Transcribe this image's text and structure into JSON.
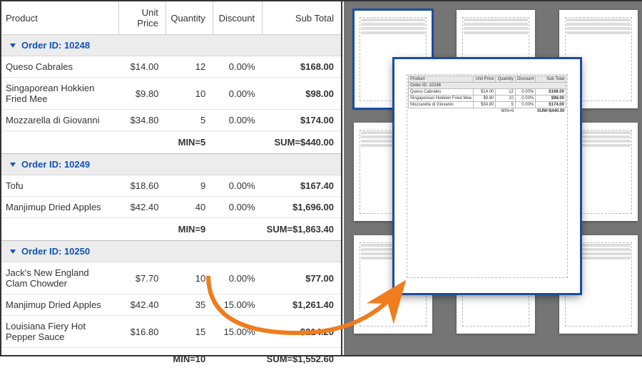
{
  "columns": {
    "product": "Product",
    "unit_price": "Unit Price",
    "quantity": "Quantity",
    "discount": "Discount",
    "subtotal": "Sub Total"
  },
  "group_label_prefix": "Order ID: ",
  "groups": [
    {
      "id": "10248",
      "rows": [
        {
          "product": "Queso Cabrales",
          "price": "$14.00",
          "qty": "12",
          "disc": "0.00%",
          "sub": "$168.00"
        },
        {
          "product": "Singaporean Hokkien Fried Mee",
          "price": "$9.80",
          "qty": "10",
          "disc": "0.00%",
          "sub": "$98.00"
        },
        {
          "product": "Mozzarella di Giovanni",
          "price": "$34.80",
          "qty": "5",
          "disc": "0.00%",
          "sub": "$174.00"
        }
      ],
      "min": "MIN=5",
      "sum": "SUM=$440.00"
    },
    {
      "id": "10249",
      "rows": [
        {
          "product": "Tofu",
          "price": "$18.60",
          "qty": "9",
          "disc": "0.00%",
          "sub": "$167.40"
        },
        {
          "product": "Manjimup Dried Apples",
          "price": "$42.40",
          "qty": "40",
          "disc": "0.00%",
          "sub": "$1,696.00"
        }
      ],
      "min": "MIN=9",
      "sum": "SUM=$1,863.40"
    },
    {
      "id": "10250",
      "rows": [
        {
          "product": "Jack's New England Clam Chowder",
          "price": "$7.70",
          "qty": "10",
          "disc": "0.00%",
          "sub": "$77.00"
        },
        {
          "product": "Manjimup Dried Apples",
          "price": "$42.40",
          "qty": "35",
          "disc": "15.00%",
          "sub": "$1,261.40"
        },
        {
          "product": "Louisiana Fiery Hot Pepper Sauce",
          "price": "$16.80",
          "qty": "15",
          "disc": "15.00%",
          "sub": "$214.20"
        }
      ],
      "min": "MIN=10",
      "sum": "SUM=$1,552.60"
    }
  ],
  "colors": {
    "group_header_bg": "#ececec",
    "group_link": "#0f52ba",
    "border": "#d0d0d0",
    "right_bg": "#757575",
    "arrow": "#f07c1e",
    "selection": "#1a4ea0"
  },
  "thumbnails": {
    "cols": 3,
    "rows": 3,
    "width": 110,
    "height": 138,
    "gapx": 34,
    "gapy": 20,
    "selected_index": 0
  },
  "preview_group_index": 0
}
